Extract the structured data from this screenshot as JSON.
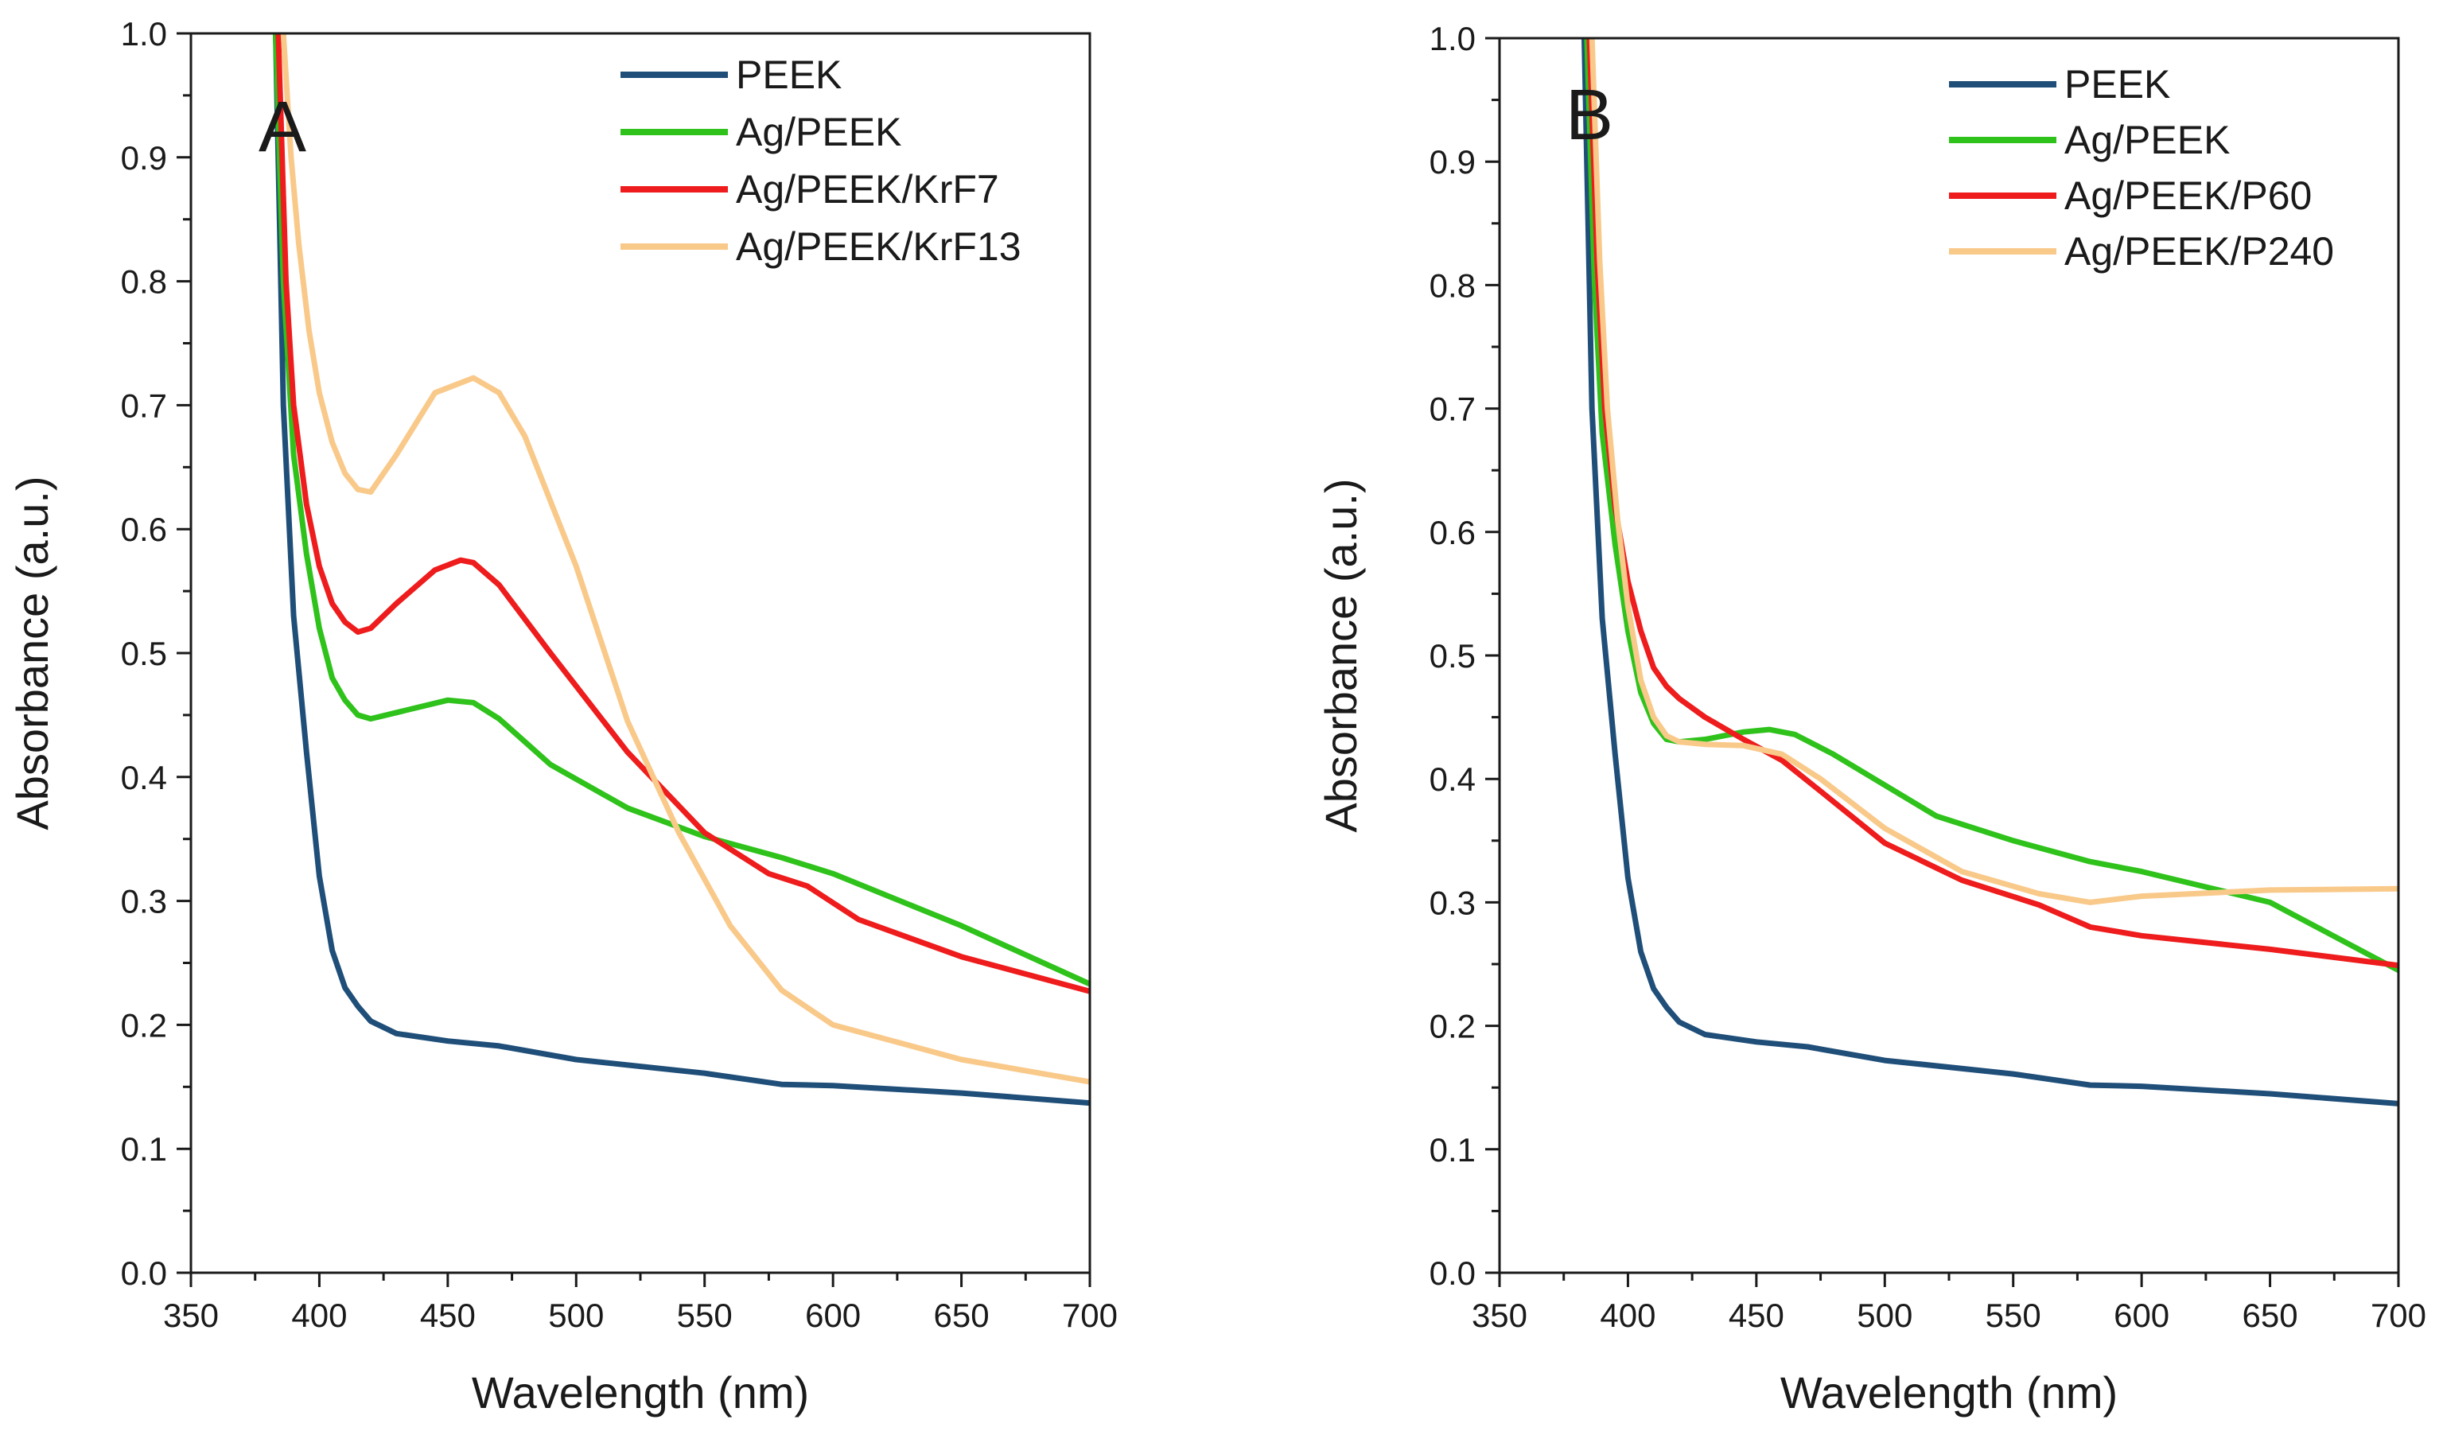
{
  "colors": {
    "PEEK": "#1f4e79",
    "Ag/PEEK": "#2ec21b",
    "Ag/PEEK/KrF7": "#ee1c1c",
    "Ag/PEEK/KrF13": "#f9c98a",
    "Ag/PEEK/P60": "#ee1c1c",
    "Ag/PEEK/P240": "#f9c98a"
  },
  "chart_data": [
    {
      "type": "line",
      "panel_label": "A",
      "xlabel": "Wavelength (nm)",
      "ylabel": "Absorbance (a.u.)",
      "xlim": [
        350,
        700
      ],
      "ylim": [
        0.0,
        1.0
      ],
      "x_ticks": [
        "350",
        "400",
        "450",
        "500",
        "550",
        "600",
        "650",
        "700"
      ],
      "y_ticks": [
        "0.0",
        "0.1",
        "0.2",
        "0.3",
        "0.4",
        "0.5",
        "0.6",
        "0.7",
        "0.8",
        "0.9",
        "1.0"
      ],
      "legend_position": "top-right",
      "series": [
        {
          "name": "PEEK",
          "x": [
            383,
            386,
            390,
            395,
            400,
            405,
            410,
            415,
            420,
            430,
            450,
            470,
            500,
            550,
            580,
            600,
            650,
            700
          ],
          "y": [
            1.0,
            0.7,
            0.53,
            0.42,
            0.32,
            0.26,
            0.23,
            0.215,
            0.203,
            0.193,
            0.187,
            0.183,
            0.172,
            0.161,
            0.152,
            0.151,
            0.145,
            0.137
          ]
        },
        {
          "name": "Ag/PEEK",
          "x": [
            383,
            386,
            390,
            395,
            400,
            405,
            410,
            415,
            420,
            430,
            450,
            460,
            470,
            490,
            520,
            550,
            580,
            600,
            650,
            700
          ],
          "y": [
            1.0,
            0.8,
            0.66,
            0.58,
            0.52,
            0.48,
            0.462,
            0.45,
            0.447,
            0.452,
            0.462,
            0.46,
            0.447,
            0.41,
            0.375,
            0.352,
            0.335,
            0.322,
            0.28,
            0.233
          ]
        },
        {
          "name": "Ag/PEEK/KrF7",
          "x": [
            384,
            387,
            390,
            395,
            400,
            405,
            410,
            415,
            420,
            430,
            445,
            455,
            460,
            470,
            490,
            520,
            550,
            575,
            590,
            610,
            650,
            700
          ],
          "y": [
            1.0,
            0.8,
            0.7,
            0.62,
            0.57,
            0.54,
            0.525,
            0.517,
            0.52,
            0.54,
            0.567,
            0.575,
            0.573,
            0.555,
            0.5,
            0.42,
            0.355,
            0.322,
            0.312,
            0.285,
            0.255,
            0.227
          ]
        },
        {
          "name": "Ag/PEEK/KrF13",
          "x": [
            386,
            389,
            392,
            396,
            400,
            405,
            410,
            415,
            420,
            430,
            445,
            460,
            470,
            480,
            500,
            520,
            540,
            560,
            580,
            600,
            650,
            700
          ],
          "y": [
            1.0,
            0.9,
            0.83,
            0.76,
            0.71,
            0.67,
            0.645,
            0.632,
            0.63,
            0.66,
            0.71,
            0.722,
            0.71,
            0.675,
            0.57,
            0.445,
            0.355,
            0.28,
            0.228,
            0.2,
            0.172,
            0.154
          ]
        }
      ]
    },
    {
      "type": "line",
      "panel_label": "B",
      "xlabel": "Wavelength (nm)",
      "ylabel": "Absorbance (a.u.)",
      "xlim": [
        350,
        700
      ],
      "ylim": [
        0.0,
        1.0
      ],
      "x_ticks": [
        "350",
        "400",
        "450",
        "500",
        "550",
        "600",
        "650",
        "700"
      ],
      "y_ticks": [
        "0.0",
        "0.1",
        "0.2",
        "0.3",
        "0.4",
        "0.5",
        "0.6",
        "0.7",
        "0.8",
        "0.9",
        "1.0"
      ],
      "legend_position": "top-right",
      "series": [
        {
          "name": "PEEK",
          "x": [
            383,
            386,
            390,
            395,
            400,
            405,
            410,
            415,
            420,
            430,
            450,
            470,
            500,
            550,
            580,
            600,
            650,
            700
          ],
          "y": [
            1.0,
            0.7,
            0.53,
            0.42,
            0.32,
            0.26,
            0.23,
            0.215,
            0.203,
            0.193,
            0.187,
            0.183,
            0.172,
            0.161,
            0.152,
            0.151,
            0.145,
            0.137
          ]
        },
        {
          "name": "Ag/PEEK",
          "x": [
            384,
            387,
            390,
            395,
            400,
            405,
            410,
            415,
            420,
            430,
            445,
            455,
            465,
            480,
            500,
            520,
            550,
            580,
            600,
            650,
            700
          ],
          "y": [
            1.0,
            0.8,
            0.68,
            0.59,
            0.52,
            0.47,
            0.445,
            0.432,
            0.43,
            0.432,
            0.438,
            0.44,
            0.436,
            0.42,
            0.395,
            0.37,
            0.35,
            0.333,
            0.325,
            0.3,
            0.245
          ]
        },
        {
          "name": "Ag/PEEK/P60",
          "x": [
            385,
            388,
            391,
            395,
            400,
            405,
            410,
            415,
            420,
            430,
            445,
            460,
            475,
            500,
            530,
            560,
            580,
            600,
            650,
            700
          ],
          "y": [
            1.0,
            0.82,
            0.7,
            0.62,
            0.56,
            0.52,
            0.49,
            0.475,
            0.465,
            0.45,
            0.432,
            0.415,
            0.39,
            0.348,
            0.318,
            0.298,
            0.28,
            0.273,
            0.262,
            0.249
          ]
        },
        {
          "name": "Ag/PEEK/P240",
          "x": [
            386,
            389,
            392,
            396,
            400,
            405,
            410,
            415,
            420,
            430,
            445,
            460,
            475,
            500,
            530,
            560,
            580,
            600,
            650,
            700
          ],
          "y": [
            1.0,
            0.82,
            0.7,
            0.61,
            0.54,
            0.48,
            0.45,
            0.435,
            0.43,
            0.428,
            0.427,
            0.42,
            0.4,
            0.36,
            0.325,
            0.307,
            0.3,
            0.305,
            0.31,
            0.311
          ]
        }
      ]
    }
  ]
}
